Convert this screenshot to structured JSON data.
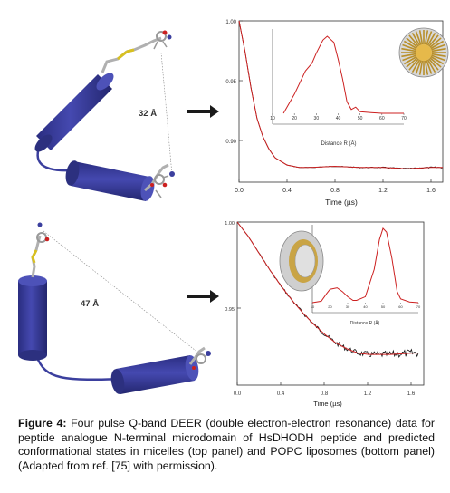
{
  "panels": {
    "top": {
      "distance_label": "32 Å",
      "main_chart": {
        "y_ticks": [
          "1.00",
          "0.95",
          "0.90"
        ],
        "x_ticks": [
          "0.0",
          "0.4",
          "0.8",
          "1.2",
          "1.6"
        ],
        "xlabel": "Time (µs)"
      },
      "inset": {
        "x_ticks": [
          "10",
          "20",
          "30",
          "40",
          "50",
          "60",
          "70"
        ],
        "xlabel": "Distance R (Å)"
      }
    },
    "bottom": {
      "distance_label": "47 Å",
      "main_chart": {
        "y_ticks": [
          "1.00",
          "0.95"
        ],
        "x_ticks": [
          "0.0",
          "0.4",
          "0.8",
          "1.2",
          "1.6"
        ],
        "xlabel": "Time (µs)"
      },
      "inset": {
        "x_ticks": [
          "10",
          "20",
          "30",
          "40",
          "50",
          "60",
          "70"
        ],
        "xlabel": "Distance R (Å)"
      }
    }
  },
  "caption": {
    "label": "Figure 4:",
    "text": " Four pulse Q-band DEER (double electron-electron resonance) data for peptide analogue N-terminal microdomain of HsDHODH peptide and predicted conformational states in micelles (top panel) and POPC liposomes (bottom panel) (Adapted from ref. [75] with permission)."
  },
  "colors": {
    "helix": "#3b3f9e",
    "fit_line": "#cc2020",
    "data_line": "#111111",
    "arrow": "#1a1a1a",
    "figure_border": "#d4a84a"
  },
  "chart_data": [
    {
      "type": "line",
      "panel": "top-main",
      "series": [
        {
          "x": [
            0.0,
            0.05,
            0.1,
            0.15,
            0.2,
            0.25,
            0.3,
            0.4,
            0.5,
            0.6,
            0.8,
            1.0,
            1.2,
            1.4,
            1.6,
            1.7
          ],
          "values": [
            1.0,
            0.975,
            0.945,
            0.92,
            0.905,
            0.895,
            0.888,
            0.882,
            0.88,
            0.88,
            0.881,
            0.88,
            0.88,
            0.879,
            0.88,
            0.88
          ]
        }
      ],
      "xlabel": "Time (µs)",
      "xlim": [
        0,
        1.7
      ],
      "ylim": [
        0.868,
        1.0
      ]
    },
    {
      "type": "line",
      "panel": "top-inset",
      "series": [
        {
          "x": [
            15,
            20,
            25,
            28,
            30,
            33,
            35,
            38,
            40,
            42,
            44,
            46,
            48,
            50,
            55,
            60,
            70
          ],
          "values": [
            0.0,
            0.25,
            0.55,
            0.65,
            0.78,
            0.95,
            1.0,
            0.92,
            0.7,
            0.45,
            0.15,
            0.05,
            0.08,
            0.02,
            0.01,
            0.0,
            0.0
          ]
        }
      ],
      "xlabel": "Distance R (Å)",
      "xlim": [
        10,
        70
      ]
    },
    {
      "type": "line",
      "panel": "bottom-main",
      "series": [
        {
          "x": [
            0.0,
            0.1,
            0.2,
            0.3,
            0.4,
            0.5,
            0.6,
            0.7,
            0.8,
            0.9,
            1.0,
            1.1,
            1.2,
            1.4,
            1.6,
            1.65
          ],
          "values": [
            1.0,
            0.99,
            0.978,
            0.966,
            0.955,
            0.945,
            0.936,
            0.928,
            0.921,
            0.915,
            0.911,
            0.908,
            0.907,
            0.907,
            0.908,
            0.908
          ]
        }
      ],
      "xlabel": "Time (µs)",
      "xlim": [
        0,
        1.7
      ],
      "ylim": [
        0.895,
        1.0
      ]
    },
    {
      "type": "line",
      "panel": "bottom-inset",
      "series": [
        {
          "x": [
            10,
            15,
            18,
            20,
            24,
            27,
            30,
            33,
            35,
            40,
            45,
            48,
            50,
            52,
            55,
            58,
            60,
            65,
            70
          ],
          "values": [
            0.0,
            0.02,
            0.12,
            0.18,
            0.2,
            0.15,
            0.08,
            0.03,
            0.03,
            0.08,
            0.45,
            0.85,
            1.0,
            0.95,
            0.6,
            0.15,
            0.05,
            0.01,
            0.0
          ]
        }
      ],
      "xlabel": "Distance R (Å)",
      "xlim": [
        10,
        70
      ]
    }
  ]
}
